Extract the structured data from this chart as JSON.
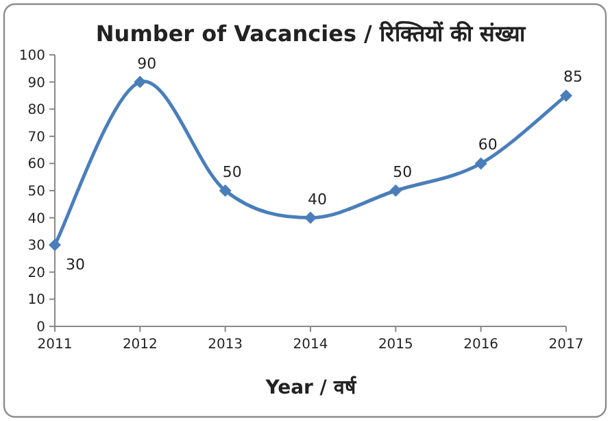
{
  "chart_data": {
    "type": "line",
    "title": "Number of Vacancies / रिक्तियों की संख्या",
    "xlabel": "Year / वर्ष",
    "categories": [
      "2011",
      "2012",
      "2013",
      "2014",
      "2015",
      "2016",
      "2017"
    ],
    "series": [
      {
        "color": "#4a7ebb",
        "values": [
          30,
          90,
          50,
          40,
          50,
          60,
          85
        ]
      }
    ],
    "ylim": [
      0,
      100
    ],
    "yticks": [
      0,
      10,
      20,
      30,
      40,
      50,
      60,
      70,
      80,
      90,
      100
    ],
    "marker": "diamond",
    "data_labels": true
  }
}
